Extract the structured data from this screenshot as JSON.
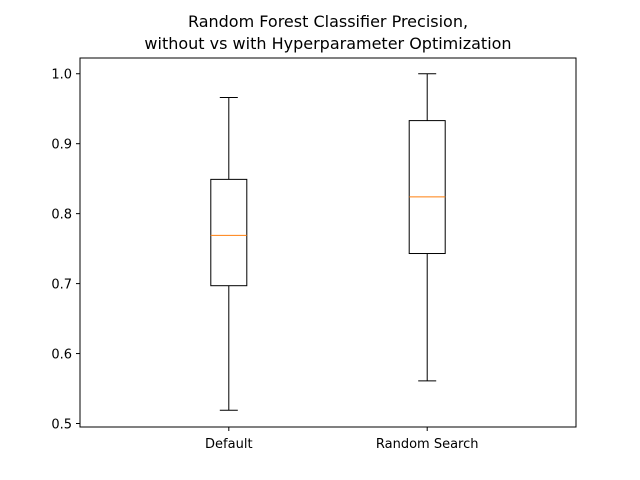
{
  "chart_data": {
    "type": "boxplot",
    "title_lines": [
      "Random Forest Classifier Precision,",
      "without vs with Hyperparameter Optimization"
    ],
    "xlabel": "",
    "ylabel": "",
    "categories": [
      "Default",
      "Random Search"
    ],
    "boxes": [
      {
        "category": "Default",
        "whisker_low": 0.519,
        "q1": 0.697,
        "median": 0.769,
        "q3": 0.849,
        "whisker_high": 0.966
      },
      {
        "category": "Random Search",
        "whisker_low": 0.561,
        "q1": 0.743,
        "median": 0.824,
        "q3": 0.933,
        "whisker_high": 1.0
      }
    ],
    "ylim": [
      0.495,
      1.0225
    ],
    "yticks": [
      0.5,
      0.6,
      0.7,
      0.8,
      0.9,
      1.0
    ],
    "ytick_labels": [
      "0.5",
      "0.6",
      "0.7",
      "0.8",
      "0.9",
      "1.0"
    ],
    "grid": false,
    "colors": {
      "box": "#000000",
      "median": "#ff7f0e"
    }
  }
}
